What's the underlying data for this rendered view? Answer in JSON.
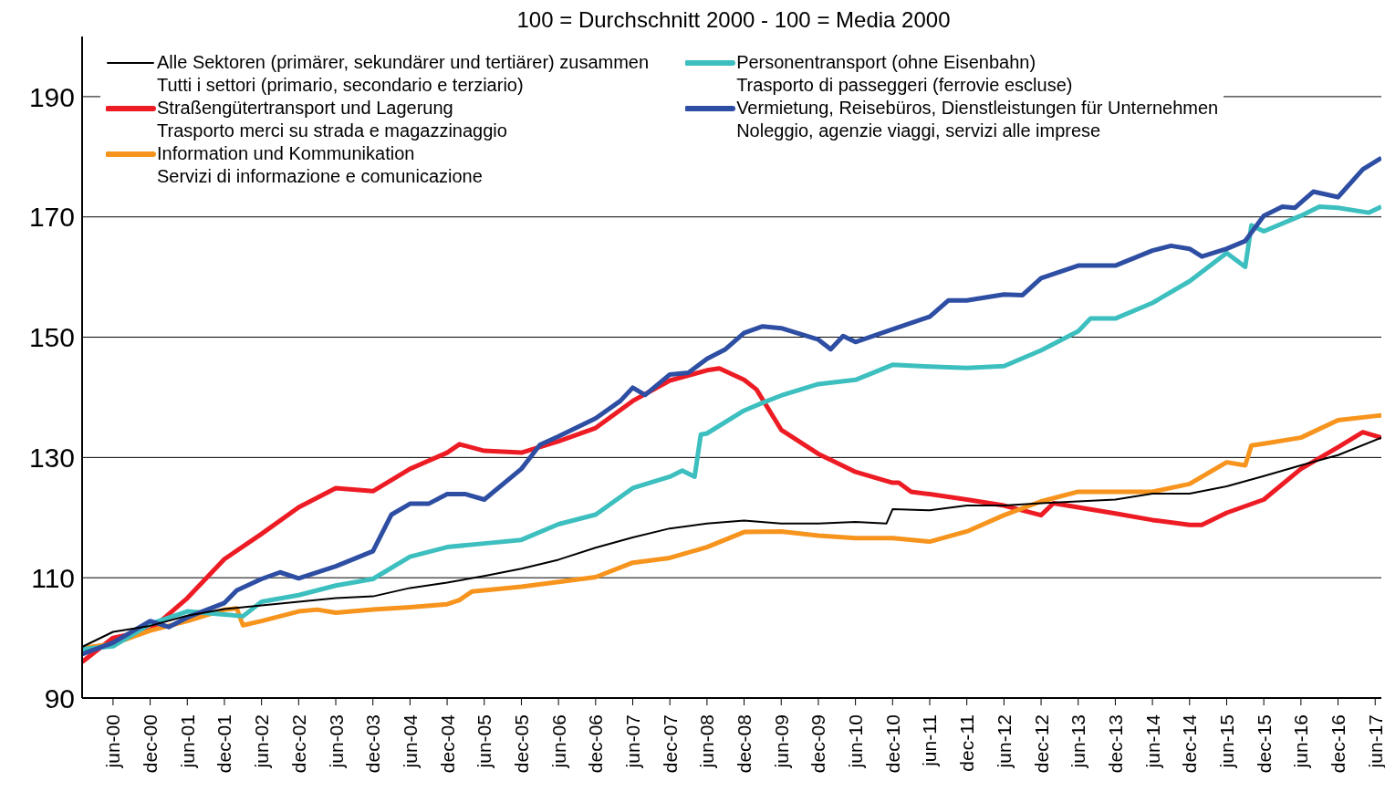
{
  "chart_data": {
    "type": "line",
    "title": "100 = Durchschnitt 2000 - 100 = Media 2000",
    "xlim": [
      "2000-01",
      "2017-07"
    ],
    "xticks": [
      {
        "value": "2000-06",
        "label": "jun-00"
      },
      {
        "value": "2000-12",
        "label": "dec-00"
      },
      {
        "value": "2001-06",
        "label": "jun-01"
      },
      {
        "value": "2001-12",
        "label": "dec-01"
      },
      {
        "value": "2002-06",
        "label": "jun-02"
      },
      {
        "value": "2002-12",
        "label": "dec-02"
      },
      {
        "value": "2003-06",
        "label": "jun-03"
      },
      {
        "value": "2003-12",
        "label": "dec-03"
      },
      {
        "value": "2004-06",
        "label": "jun-04"
      },
      {
        "value": "2004-12",
        "label": "dec-04"
      },
      {
        "value": "2005-06",
        "label": "jun-05"
      },
      {
        "value": "2005-12",
        "label": "dec-05"
      },
      {
        "value": "2006-06",
        "label": "jun-06"
      },
      {
        "value": "2006-12",
        "label": "dec-06"
      },
      {
        "value": "2007-06",
        "label": "jun-07"
      },
      {
        "value": "2007-12",
        "label": "dec-07"
      },
      {
        "value": "2008-06",
        "label": "jun-08"
      },
      {
        "value": "2008-12",
        "label": "dec-08"
      },
      {
        "value": "2009-06",
        "label": "jun-09"
      },
      {
        "value": "2009-12",
        "label": "dec-09"
      },
      {
        "value": "2010-06",
        "label": "jun-10"
      },
      {
        "value": "2010-12",
        "label": "dec-10"
      },
      {
        "value": "2011-06",
        "label": "jun-11"
      },
      {
        "value": "2011-12",
        "label": "dec-11"
      },
      {
        "value": "2012-06",
        "label": "jun-12"
      },
      {
        "value": "2012-12",
        "label": "dec-12"
      },
      {
        "value": "2013-06",
        "label": "jun-13"
      },
      {
        "value": "2013-12",
        "label": "dec-13"
      },
      {
        "value": "2014-06",
        "label": "jun-14"
      },
      {
        "value": "2014-12",
        "label": "dec-14"
      },
      {
        "value": "2015-06",
        "label": "jun-15"
      },
      {
        "value": "2015-12",
        "label": "dec-15"
      },
      {
        "value": "2016-06",
        "label": "jun-16"
      },
      {
        "value": "2016-12",
        "label": "dec-16"
      },
      {
        "value": "2017-06",
        "label": "jun-17"
      }
    ],
    "ylim": [
      90,
      200
    ],
    "yticks": [
      90,
      110,
      130,
      150,
      170,
      190
    ],
    "grid": "y",
    "legend": "top",
    "series": [
      {
        "name": "Alle Sektoren (primärer, sekundärer und tertiärer) zusammen\nTutti i settori (primario, secondario e terziario)",
        "color": "#000000",
        "x": [
          "2000-01",
          "2000-06",
          "2000-12",
          "2001-06",
          "2001-12",
          "2002-06",
          "2002-12",
          "2003-06",
          "2003-12",
          "2004-06",
          "2004-12",
          "2005-06",
          "2005-12",
          "2006-06",
          "2006-12",
          "2007-06",
          "2007-12",
          "2008-06",
          "2008-12",
          "2009-06",
          "2009-12",
          "2010-06",
          "2010-11",
          "2010-12",
          "2011-06",
          "2011-12",
          "2012-06",
          "2012-12",
          "2013-06",
          "2013-12",
          "2014-06",
          "2014-12",
          "2015-06",
          "2015-12",
          "2016-06",
          "2016-12",
          "2017-07"
        ],
        "values": [
          98.5,
          101,
          102,
          103.7,
          104.8,
          105.4,
          106,
          106.6,
          106.9,
          108.3,
          109.2,
          110.3,
          111.5,
          113,
          115,
          116.7,
          118.2,
          119,
          119.5,
          119,
          119,
          119.3,
          119,
          121.4,
          121.2,
          122,
          122,
          122.4,
          122.7,
          123,
          124,
          124,
          125.2,
          126.9,
          128.7,
          130.4,
          133.3
        ]
      },
      {
        "name": "Straßengütertransport und Lagerung\nTrasporto merci su strada e magazzinaggio",
        "color": "#ed1c24",
        "x": [
          "2000-01",
          "2000-06",
          "2000-12",
          "2001-06",
          "2001-12",
          "2002-06",
          "2002-12",
          "2003-06",
          "2003-12",
          "2004-06",
          "2004-12",
          "2005-02",
          "2005-06",
          "2005-12",
          "2006-06",
          "2006-12",
          "2007-06",
          "2007-12",
          "2008-06",
          "2008-08",
          "2008-12",
          "2009-02",
          "2009-06",
          "2009-12",
          "2010-06",
          "2010-12",
          "2011-01",
          "2011-03",
          "2011-06",
          "2011-12",
          "2012-06",
          "2012-12",
          "2013-02",
          "2013-06",
          "2013-12",
          "2014-06",
          "2014-12",
          "2015-02",
          "2015-06",
          "2015-12",
          "2016-06",
          "2016-12",
          "2017-04",
          "2017-07"
        ],
        "values": [
          96,
          100,
          101.3,
          106.6,
          113.1,
          117.3,
          121.7,
          124.9,
          124.4,
          128.1,
          130.8,
          132.2,
          131.1,
          130.8,
          132.7,
          134.9,
          139.4,
          142.8,
          144.5,
          144.8,
          142.9,
          141.3,
          134.6,
          130.6,
          127.6,
          125.8,
          125.8,
          124.3,
          123.9,
          123,
          122,
          120.4,
          122.4,
          121.7,
          120.7,
          119.6,
          118.8,
          118.8,
          120.8,
          123,
          128.1,
          131.7,
          134.2,
          133.3
        ]
      },
      {
        "name": "Information und Kommunikation\nServizi di informazione e comunicazione",
        "color": "#f7941d",
        "x": [
          "2000-01",
          "2000-06",
          "2000-12",
          "2001-06",
          "2001-12",
          "2002-02",
          "2002-03",
          "2002-06",
          "2002-12",
          "2003-03",
          "2003-06",
          "2003-12",
          "2004-06",
          "2004-12",
          "2005-02",
          "2005-04",
          "2005-06",
          "2005-12",
          "2006-06",
          "2006-12",
          "2007-06",
          "2007-12",
          "2008-06",
          "2008-12",
          "2009-06",
          "2009-12",
          "2010-06",
          "2010-12",
          "2011-06",
          "2011-12",
          "2012-06",
          "2012-12",
          "2013-06",
          "2013-12",
          "2014-06",
          "2014-12",
          "2015-06",
          "2015-09",
          "2015-10",
          "2015-12",
          "2016-06",
          "2016-12",
          "2017-06",
          "2017-07"
        ],
        "values": [
          98.3,
          99,
          101.2,
          102.8,
          104.7,
          104.9,
          102.1,
          102.8,
          104.4,
          104.7,
          104.2,
          104.7,
          105.1,
          105.6,
          106.3,
          107.7,
          107.9,
          108.5,
          109.3,
          110.1,
          112.5,
          113.3,
          115.1,
          117.6,
          117.7,
          117,
          116.6,
          116.6,
          116,
          117.7,
          120.4,
          122.7,
          124.3,
          124.3,
          124.3,
          125.6,
          129.2,
          128.7,
          132,
          132.3,
          133.3,
          136.2,
          136.9,
          137
        ]
      },
      {
        "name": "Personentransport (ohne Eisenbahn)\nTrasporto di passeggeri (ferrovie escluse)",
        "color": "#3dbfbf",
        "x": [
          "2000-01",
          "2000-06",
          "2000-12",
          "2001-06",
          "2001-12",
          "2002-03",
          "2002-06",
          "2002-12",
          "2003-06",
          "2003-12",
          "2004-06",
          "2004-12",
          "2005-06",
          "2005-12",
          "2006-06",
          "2006-12",
          "2007-06",
          "2007-12",
          "2008-02",
          "2008-04",
          "2008-05",
          "2008-06",
          "2008-12",
          "2009-03",
          "2009-06",
          "2009-12",
          "2010-06",
          "2010-12",
          "2011-06",
          "2011-12",
          "2012-06",
          "2012-12",
          "2013-06",
          "2013-08",
          "2013-12",
          "2014-06",
          "2014-12",
          "2015-06",
          "2015-09",
          "2015-10",
          "2015-12",
          "2016-06",
          "2016-09",
          "2016-12",
          "2017-05",
          "2017-07"
        ],
        "values": [
          98.1,
          98.6,
          102.3,
          104.4,
          103.9,
          103.6,
          106,
          107.1,
          108.7,
          109.8,
          113.5,
          115.1,
          115.7,
          116.3,
          118.9,
          120.5,
          124.9,
          126.8,
          127.8,
          126.8,
          133.8,
          134,
          137.8,
          139.1,
          140.3,
          142.2,
          142.9,
          145.4,
          145.1,
          144.9,
          145.2,
          147.8,
          151,
          153.1,
          153.1,
          155.7,
          159.3,
          164,
          161.7,
          168.6,
          167.6,
          170.2,
          171.7,
          171.5,
          170.7,
          171.7
        ]
      },
      {
        "name": "Vermietung, Reisebüros, Dienstleistungen für Unternehmen\nNoleggio, agenzie viaggi, servizi alle imprese",
        "color": "#2e4ea3",
        "x": [
          "2000-01",
          "2000-06",
          "2000-12",
          "2001-03",
          "2001-06",
          "2001-12",
          "2002-02",
          "2002-06",
          "2002-09",
          "2002-12",
          "2003-06",
          "2003-12",
          "2004-03",
          "2004-06",
          "2004-09",
          "2004-12",
          "2005-03",
          "2005-06",
          "2005-12",
          "2006-03",
          "2006-06",
          "2006-12",
          "2007-04",
          "2007-06",
          "2007-08",
          "2007-12",
          "2008-03",
          "2008-06",
          "2008-09",
          "2008-12",
          "2009-03",
          "2009-06",
          "2009-12",
          "2010-02",
          "2010-04",
          "2010-06",
          "2010-12",
          "2011-06",
          "2011-09",
          "2011-12",
          "2012-06",
          "2012-09",
          "2012-12",
          "2013-06",
          "2013-12",
          "2014-06",
          "2014-09",
          "2014-12",
          "2015-02",
          "2015-06",
          "2015-09",
          "2015-12",
          "2016-03",
          "2016-05",
          "2016-08",
          "2016-12",
          "2017-04",
          "2017-07"
        ],
        "values": [
          97.3,
          99.2,
          102.8,
          101.8,
          103.4,
          105.8,
          107.9,
          109.8,
          110.9,
          109.9,
          111.9,
          114.4,
          120.5,
          122.3,
          122.3,
          123.9,
          123.9,
          123,
          128.1,
          132.1,
          133.5,
          136.5,
          139.4,
          141.6,
          140.4,
          143.8,
          144.1,
          146.4,
          148,
          150.7,
          151.8,
          151.5,
          149.6,
          148,
          150.2,
          149.2,
          151.3,
          153.4,
          156.1,
          156.1,
          157.1,
          157,
          159.8,
          161.9,
          161.9,
          164.4,
          165.2,
          164.7,
          163.4,
          164.7,
          166,
          170.2,
          171.7,
          171.5,
          174.2,
          173.3,
          177.9,
          179.8
        ]
      }
    ]
  }
}
